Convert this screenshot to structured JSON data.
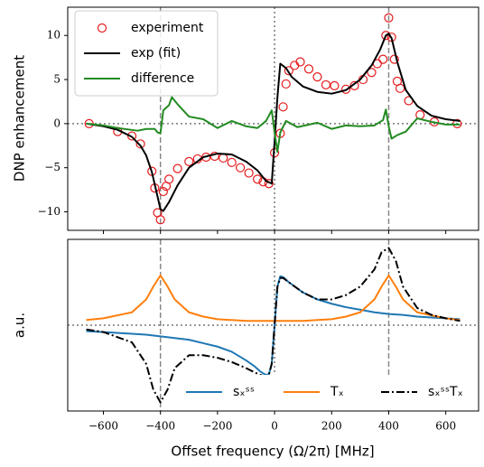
{
  "chart_data": [
    {
      "type": "line",
      "ylabel": "DNP enhancement",
      "xlim": [
        -725,
        715
      ],
      "ylim": [
        -12.1,
        13.2
      ],
      "xticks": [
        {
          "value": -600,
          "label": "−600"
        },
        {
          "value": -400,
          "label": "−400"
        },
        {
          "value": -200,
          "label": "−200"
        },
        0,
        200,
        400,
        600
      ],
      "yticks": [
        {
          "value": -10,
          "label": "−10"
        },
        {
          "value": -5,
          "label": "−5"
        },
        0,
        5,
        10
      ],
      "dashed_vlines": [
        -400,
        400
      ],
      "dotted_vlines": [
        0
      ],
      "dotted_hlines": [
        0
      ],
      "legend": "upper left",
      "legend_columns": 1,
      "series": [
        {
          "name": "experiment",
          "color": "#e41a1c",
          "style": "markers",
          "x": [
            -650,
            -550,
            -500,
            -470,
            -430,
            -420,
            -410,
            -400,
            -390,
            -380,
            -370,
            -340,
            -300,
            -270,
            -240,
            -210,
            -180,
            -150,
            -120,
            -90,
            -60,
            -40,
            -20,
            0,
            20,
            30,
            40,
            50,
            70,
            90,
            120,
            150,
            180,
            210,
            250,
            280,
            310,
            340,
            360,
            380,
            390,
            400,
            410,
            420,
            430,
            440,
            470,
            510,
            560,
            640
          ],
          "values": [
            0,
            -0.9,
            -1.4,
            -2.3,
            -5.4,
            -7.3,
            -10.1,
            -10.9,
            -7.7,
            -7.1,
            -6.3,
            -5.1,
            -4.3,
            -4.0,
            -3.8,
            -3.7,
            -3.9,
            -4.4,
            -5.0,
            -5.6,
            -6.3,
            -6.6,
            -6.8,
            -3.3,
            -1.1,
            1.9,
            4.5,
            6.0,
            6.6,
            7.0,
            6.2,
            5.3,
            4.4,
            4.3,
            3.9,
            4.3,
            5.0,
            5.8,
            6.8,
            7.3,
            10.0,
            12.0,
            9.8,
            7.3,
            4.8,
            4.0,
            2.6,
            1.0,
            0.2,
            0
          ]
        },
        {
          "name": "exp (fit)",
          "color": "#000000",
          "style": "solid",
          "x": [
            -660,
            -600,
            -550,
            -500,
            -470,
            -450,
            -430,
            -410,
            -400,
            -390,
            -370,
            -340,
            -300,
            -250,
            -200,
            -150,
            -100,
            -60,
            -30,
            -10,
            0,
            10,
            20,
            40,
            60,
            100,
            150,
            200,
            250,
            300,
            340,
            370,
            390,
            400,
            410,
            430,
            460,
            500,
            550,
            600,
            650
          ],
          "values": [
            0,
            -0.3,
            -0.7,
            -1.5,
            -2.5,
            -3.6,
            -5.5,
            -8.3,
            -9.7,
            -9.9,
            -8.9,
            -7.0,
            -5.0,
            -3.8,
            -3.4,
            -3.5,
            -4.3,
            -5.3,
            -6.5,
            -6.8,
            -2.0,
            3.0,
            6.8,
            6.3,
            5.3,
            4.2,
            3.6,
            3.4,
            3.8,
            5.0,
            6.6,
            8.4,
            10.0,
            10.2,
            9.7,
            7.0,
            3.8,
            2.0,
            0.9,
            0.5,
            0.3
          ]
        },
        {
          "name": "difference",
          "color": "#228b22",
          "style": "solid",
          "x": [
            -660,
            -600,
            -550,
            -480,
            -450,
            -420,
            -410,
            -400,
            -390,
            -370,
            -360,
            -340,
            -300,
            -250,
            -200,
            -150,
            -100,
            -60,
            -30,
            -10,
            0,
            10,
            20,
            40,
            80,
            150,
            200,
            250,
            300,
            350,
            380,
            390,
            400,
            410,
            430,
            460,
            500,
            550,
            600,
            650
          ],
          "values": [
            0,
            -0.2,
            -0.5,
            -0.8,
            -0.6,
            -0.6,
            -1.0,
            -1.1,
            1.5,
            2.1,
            3.0,
            2.2,
            0.8,
            0.5,
            -0.5,
            0.3,
            -0.3,
            -0.5,
            0.3,
            1.5,
            -1.0,
            -3.2,
            -1.0,
            0.3,
            -0.4,
            0.1,
            -0.6,
            -0.2,
            -0.3,
            -0.2,
            0.4,
            1.6,
            -0.3,
            -1.7,
            -1.3,
            -0.9,
            0.6,
            0.2,
            -0.1,
            -0.1
          ]
        }
      ]
    },
    {
      "type": "line",
      "ylabel": "a.u.",
      "xlabel": "Offset frequency (Ω/2π) [MHz]",
      "xlim": [
        -725,
        715
      ],
      "ylim": [
        -1,
        1
      ],
      "xticks": [
        {
          "value": -600,
          "label": "−600"
        },
        {
          "value": -400,
          "label": "−400"
        },
        {
          "value": -200,
          "label": "−200"
        },
        0,
        200,
        400,
        600
      ],
      "dashed_vlines": [
        -400,
        400
      ],
      "dotted_vlines": [
        0
      ],
      "dotted_hlines": [
        0
      ],
      "legend": "lower right",
      "legend_columns": 3,
      "series": [
        {
          "name": "sₓˢˢ",
          "color": "#1f77b4",
          "style": "solid",
          "x": [
            -660,
            -600,
            -500,
            -450,
            -400,
            -350,
            -300,
            -250,
            -200,
            -150,
            -100,
            -70,
            -50,
            -30,
            -20,
            -10,
            0,
            10,
            20,
            30,
            50,
            100,
            150,
            200,
            250,
            300,
            350,
            400,
            450,
            500,
            550,
            600,
            650
          ],
          "values": [
            -0.07,
            -0.08,
            -0.1,
            -0.11,
            -0.13,
            -0.15,
            -0.17,
            -0.21,
            -0.25,
            -0.31,
            -0.41,
            -0.48,
            -0.54,
            -0.58,
            -0.57,
            -0.45,
            0,
            0.45,
            0.57,
            0.56,
            0.5,
            0.38,
            0.3,
            0.25,
            0.21,
            0.18,
            0.15,
            0.13,
            0.12,
            0.1,
            0.09,
            0.08,
            0.07
          ]
        },
        {
          "name": "Tₓ",
          "color": "#ff7f0e",
          "style": "solid",
          "x": [
            -660,
            -600,
            -500,
            -450,
            -425,
            -400,
            -375,
            -350,
            -300,
            -250,
            -200,
            -150,
            -100,
            0,
            100,
            150,
            200,
            250,
            300,
            350,
            375,
            400,
            425,
            450,
            500,
            600,
            650
          ],
          "values": [
            0.06,
            0.08,
            0.15,
            0.3,
            0.45,
            0.58,
            0.45,
            0.3,
            0.15,
            0.1,
            0.07,
            0.06,
            0.05,
            0.05,
            0.05,
            0.06,
            0.07,
            0.1,
            0.15,
            0.3,
            0.45,
            0.58,
            0.45,
            0.3,
            0.15,
            0.08,
            0.06
          ]
        },
        {
          "name": "sₓˢˢTₓ",
          "color": "#000000",
          "style": "dashdot",
          "x": [
            -660,
            -600,
            -500,
            -450,
            -425,
            -400,
            -375,
            -350,
            -300,
            -250,
            -200,
            -150,
            -100,
            -70,
            -50,
            -30,
            -20,
            -10,
            0,
            10,
            20,
            30,
            50,
            100,
            150,
            200,
            250,
            300,
            350,
            375,
            400,
            425,
            450,
            500,
            550,
            600,
            650
          ],
          "values": [
            -0.05,
            -0.08,
            -0.2,
            -0.45,
            -0.75,
            -0.9,
            -0.75,
            -0.5,
            -0.35,
            -0.35,
            -0.38,
            -0.43,
            -0.5,
            -0.55,
            -0.58,
            -0.6,
            -0.58,
            -0.45,
            0,
            0.45,
            0.55,
            0.55,
            0.5,
            0.38,
            0.3,
            0.3,
            0.35,
            0.45,
            0.65,
            0.85,
            0.9,
            0.75,
            0.45,
            0.2,
            0.12,
            0.08,
            0.05
          ]
        }
      ]
    }
  ]
}
